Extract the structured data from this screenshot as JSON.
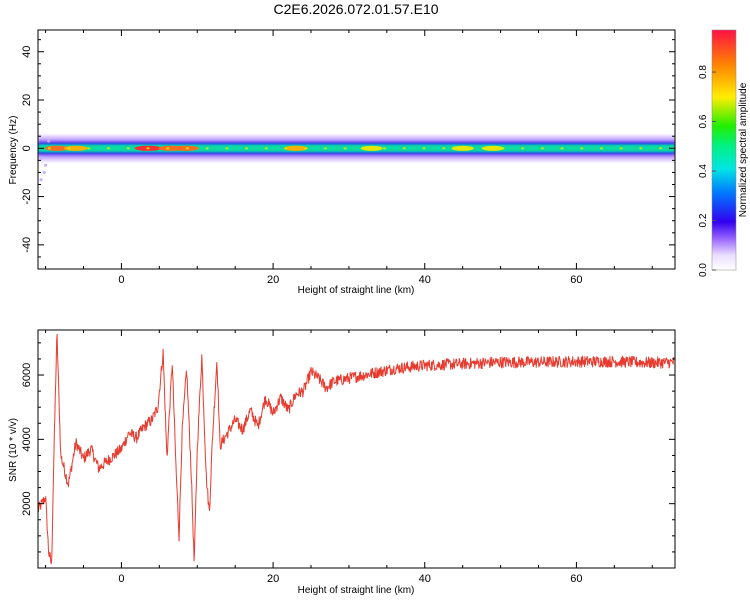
{
  "title": "C2E6.2026.072.01.57.E10",
  "colors": {
    "snr_line": "#e83a2e",
    "axis": "#000000",
    "background": "#ffffff"
  },
  "chart_data": [
    {
      "type": "heatmap",
      "xlabel": "Height of straight line (km)",
      "ylabel": "Frequency (Hz)",
      "xlim": [
        -11,
        73
      ],
      "ylim": [
        -50,
        49
      ],
      "x_ticks": [
        0,
        20,
        40,
        60
      ],
      "y_ticks": [
        -40,
        -20,
        0,
        20,
        40
      ],
      "band": {
        "frequency_center": 0,
        "core_halfwidth": 1.5,
        "spread_halfwidth": 5
      },
      "colorbar": {
        "label": "Normalized spectral amplitude",
        "range": [
          0,
          0.97
        ],
        "ticks": [
          "0.0",
          "0.2",
          "0.4",
          "0.6",
          "0.8"
        ]
      },
      "hotspots": [
        {
          "x": -8.5,
          "amplitude": 0.82
        },
        {
          "x": -6.0,
          "amplitude": 0.78
        },
        {
          "x": 3.5,
          "amplitude": 0.95
        },
        {
          "x": 6.5,
          "amplitude": 0.85
        },
        {
          "x": 8.5,
          "amplitude": 0.9
        },
        {
          "x": 23.0,
          "amplitude": 0.8
        },
        {
          "x": 33.0,
          "amplitude": 0.7
        },
        {
          "x": 45.0,
          "amplitude": 0.72
        },
        {
          "x": 49.0,
          "amplitude": 0.7
        }
      ]
    },
    {
      "type": "line",
      "xlabel": "Height of straight line (km)",
      "ylabel": "SNR (10 * v/v)",
      "xlim": [
        -11,
        73
      ],
      "ylim": [
        0,
        7400
      ],
      "x_ticks": [
        0,
        20,
        40,
        60
      ],
      "y_ticks": [
        2000,
        4000,
        6000
      ],
      "trend": {
        "x": [
          -11,
          -10,
          -9.6,
          -9.2,
          -9.0,
          -8.7,
          -8.5,
          -8,
          -7,
          -6,
          -5,
          -4,
          -3,
          -2,
          -1,
          0,
          1,
          2,
          3,
          4,
          4.8,
          5.5,
          6,
          6.7,
          7.2,
          7.6,
          8,
          8.6,
          9.2,
          9.6,
          10,
          10.6,
          11.2,
          11.6,
          12,
          12.6,
          13,
          14,
          15,
          16,
          17,
          18,
          19,
          20,
          21,
          22,
          23,
          24,
          25,
          26,
          27,
          28,
          30,
          32,
          34,
          36,
          38,
          40,
          45,
          50,
          55,
          60,
          65,
          70,
          73
        ],
        "y": [
          1800,
          2200,
          500,
          100,
          2500,
          5500,
          7300,
          3500,
          2600,
          3900,
          3400,
          3700,
          3100,
          3300,
          3500,
          3700,
          4200,
          4050,
          4400,
          4600,
          5000,
          6700,
          3400,
          6400,
          3100,
          1000,
          4200,
          6200,
          3000,
          100,
          3700,
          6600,
          2800,
          1700,
          4000,
          6500,
          3800,
          4200,
          4600,
          4300,
          4900,
          4400,
          5300,
          4800,
          5300,
          4900,
          5400,
          5500,
          6100,
          5900,
          5600,
          5800,
          5900,
          6000,
          6100,
          6200,
          6250,
          6300,
          6350,
          6400,
          6400,
          6420,
          6420,
          6380,
          6400
        ],
        "noise_amplitude": 180
      }
    }
  ]
}
